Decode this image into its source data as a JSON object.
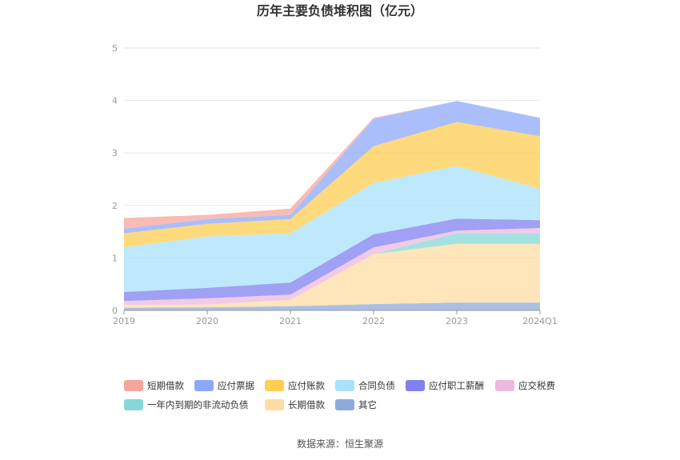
{
  "chart_data": {
    "type": "area",
    "stacked": true,
    "title": "历年主要负债堆积图（亿元）",
    "categories": [
      "2019",
      "2020",
      "2021",
      "2022",
      "2023",
      "2024Q1"
    ],
    "ylim": [
      0,
      5
    ],
    "yticks": [
      "0",
      "1",
      "2",
      "3",
      "4",
      "5"
    ],
    "grid": true,
    "legend_position": "bottom",
    "series": [
      {
        "name": "其它",
        "color": "#8eaadb",
        "values": [
          0.05,
          0.06,
          0.08,
          0.12,
          0.15,
          0.15
        ]
      },
      {
        "name": "长期借款",
        "color": "#ffdca3",
        "values": [
          0.05,
          0.05,
          0.12,
          0.95,
          1.12,
          1.12
        ]
      },
      {
        "name": "一年内到期的非流动负债",
        "color": "#86d8d8",
        "values": [
          0.0,
          0.0,
          0.0,
          0.0,
          0.2,
          0.2
        ]
      },
      {
        "name": "应交税费",
        "color": "#ecb8dd",
        "values": [
          0.08,
          0.12,
          0.1,
          0.13,
          0.05,
          0.1
        ]
      },
      {
        "name": "应付职工薪酬",
        "color": "#8080f0",
        "values": [
          0.17,
          0.2,
          0.23,
          0.25,
          0.23,
          0.15
        ]
      },
      {
        "name": "合同负债",
        "color": "#a8e2fb",
        "values": [
          0.85,
          0.98,
          0.94,
          0.98,
          1.0,
          0.6
        ]
      },
      {
        "name": "应付账款",
        "color": "#ffce52",
        "values": [
          0.27,
          0.24,
          0.27,
          0.7,
          0.84,
          1.0
        ]
      },
      {
        "name": "应付票据",
        "color": "#8da8fb",
        "values": [
          0.09,
          0.09,
          0.08,
          0.52,
          0.4,
          0.35
        ]
      },
      {
        "name": "短期借款",
        "color": "#f5a59c",
        "values": [
          0.2,
          0.08,
          0.12,
          0.02,
          0.0,
          0.0
        ]
      }
    ],
    "legend_order": [
      "短期借款",
      "应付票据",
      "应付账款",
      "合同负债",
      "应付职工薪酬",
      "应交税费",
      "一年内到期的非流动负债",
      "长期借款",
      "其它"
    ],
    "source": "数据来源：恒生聚源"
  }
}
